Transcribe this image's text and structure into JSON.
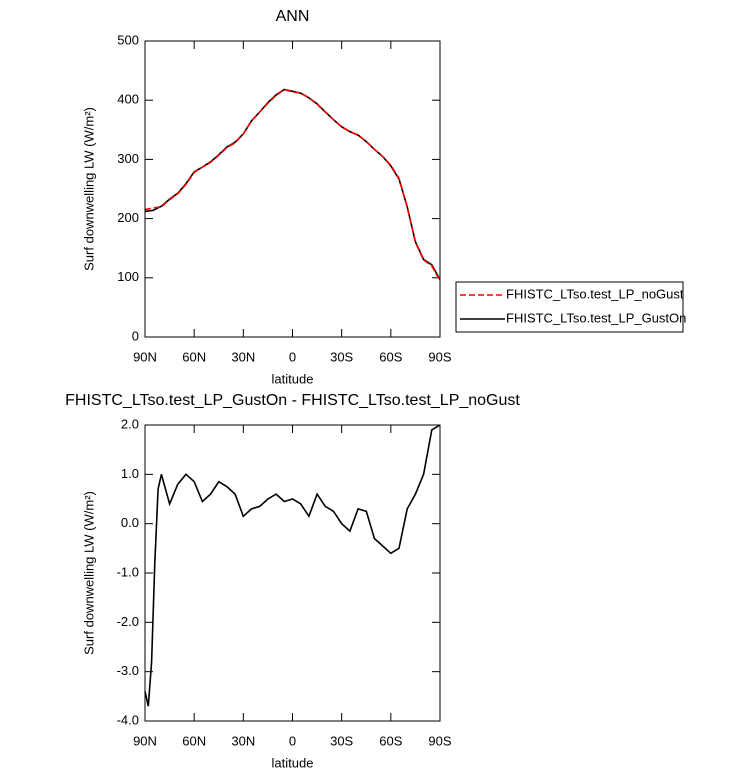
{
  "chart_data": [
    {
      "type": "line",
      "title": "ANN",
      "xlabel": "latitude",
      "ylabel": "Surf downwelling LW (W/m²)",
      "x": [
        90,
        85,
        80,
        75,
        70,
        65,
        60,
        55,
        50,
        45,
        40,
        35,
        30,
        25,
        20,
        15,
        10,
        5,
        0,
        -5,
        -10,
        -15,
        -20,
        -25,
        -30,
        -35,
        -40,
        -45,
        -50,
        -55,
        -60,
        -65,
        -70,
        -75,
        -80,
        -85,
        -90
      ],
      "series": [
        {
          "name": "FHISTC_LTso.test_LP_noGust",
          "color": "#ff0000",
          "line_style": "dashed",
          "values": [
            215,
            218,
            220,
            232,
            242,
            258,
            278,
            287,
            295,
            307,
            320,
            328,
            343,
            365,
            380,
            395,
            408,
            418,
            414,
            412,
            404,
            393,
            380,
            367,
            355,
            347,
            341,
            330,
            317,
            305,
            290,
            268,
            220,
            160,
            130,
            120,
            95
          ]
        },
        {
          "name": "FHISTC_LTso.test_LP_GustOn",
          "color": "#000000",
          "line_style": "solid",
          "values": [
            212,
            214,
            221,
            233,
            243,
            259,
            279,
            287,
            296,
            308,
            321,
            329,
            343,
            365,
            380,
            396,
            409,
            418,
            415,
            412,
            404,
            394,
            380,
            367,
            355,
            347,
            341,
            330,
            317,
            305,
            289,
            267,
            220,
            161,
            131,
            122,
            97
          ]
        }
      ],
      "xlim": [
        90,
        -90
      ],
      "xticks": [
        {
          "value": 90,
          "label": "90N"
        },
        {
          "value": 60,
          "label": "60N"
        },
        {
          "value": 30,
          "label": "30N"
        },
        0,
        {
          "value": -30,
          "label": "30S"
        },
        {
          "value": -60,
          "label": "60S"
        },
        {
          "value": -90,
          "label": "90S"
        }
      ],
      "ylim": [
        0,
        500
      ],
      "yticks": [
        0,
        100,
        200,
        300,
        400,
        500
      ]
    },
    {
      "type": "line",
      "title": "FHISTC_LTso.test_LP_GustOn - FHISTC_LTso.test_LP_noGust",
      "xlabel": "latitude",
      "ylabel": "Surf downwelling LW (W/m²)",
      "x": [
        90,
        88,
        86,
        84,
        82,
        80,
        75,
        70,
        65,
        60,
        55,
        50,
        45,
        40,
        35,
        30,
        25,
        20,
        15,
        10,
        5,
        0,
        -5,
        -10,
        -15,
        -20,
        -25,
        -30,
        -35,
        -40,
        -45,
        -50,
        -55,
        -60,
        -65,
        -70,
        -75,
        -80,
        -85,
        -90
      ],
      "values": [
        -3.4,
        -3.7,
        -2.8,
        -0.8,
        0.7,
        1.0,
        0.4,
        0.8,
        1.0,
        0.85,
        0.45,
        0.6,
        0.85,
        0.75,
        0.6,
        0.15,
        0.3,
        0.35,
        0.5,
        0.6,
        0.45,
        0.5,
        0.4,
        0.15,
        0.6,
        0.35,
        0.25,
        0.0,
        -0.15,
        0.3,
        0.25,
        -0.3,
        -0.45,
        -0.6,
        -0.5,
        0.3,
        0.6,
        1.0,
        1.9,
        2.0
      ],
      "color": "#000000",
      "xlim": [
        90,
        -90
      ],
      "xticks": [
        {
          "value": 90,
          "label": "90N"
        },
        {
          "value": 60,
          "label": "60N"
        },
        {
          "value": 30,
          "label": "30N"
        },
        0,
        {
          "value": -30,
          "label": "30S"
        },
        {
          "value": -60,
          "label": "60S"
        },
        {
          "value": -90,
          "label": "90S"
        }
      ],
      "ylim": [
        -4,
        2
      ],
      "yticks": [
        {
          "value": -4,
          "label": "-4.0"
        },
        {
          "value": -3,
          "label": "-3.0"
        },
        {
          "value": -2,
          "label": "-2.0"
        },
        {
          "value": -1,
          "label": "-1.0"
        },
        {
          "value": 0,
          "label": "0.0"
        },
        {
          "value": 1,
          "label": "1.0"
        },
        {
          "value": 2,
          "label": "2.0"
        }
      ]
    }
  ]
}
